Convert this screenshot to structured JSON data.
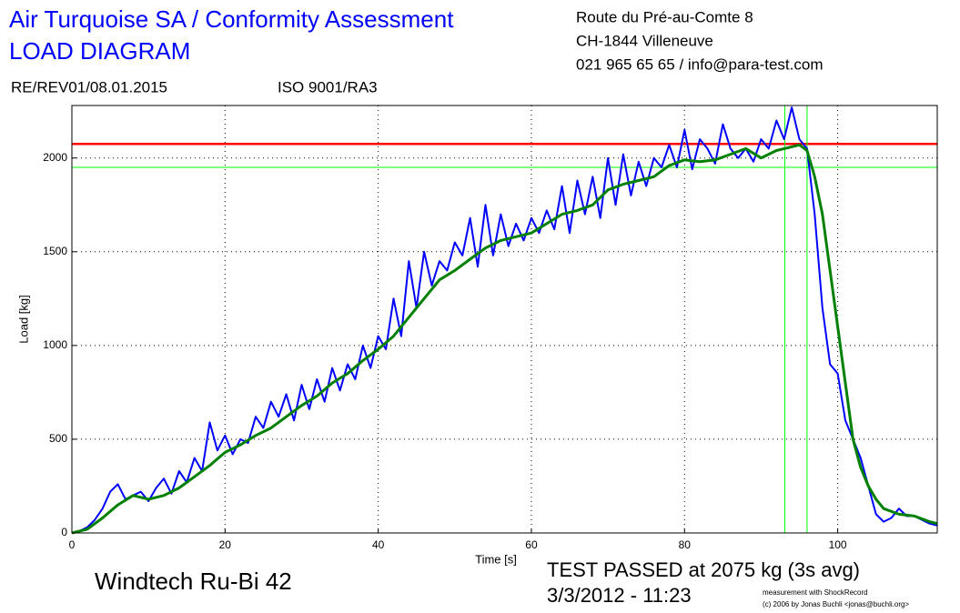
{
  "chart_data": {
    "type": "line",
    "title": "Air Turquoise SA / Conformity Assessment",
    "subtitle": "LOAD DIAGRAM",
    "revision": "RE/REV01/08.01.2015",
    "iso": "ISO 9001/RA3",
    "address": [
      "Route du Pré-au-Comte 8",
      "CH-1844 Villeneuve",
      "021 965 65 65 / info@para-test.com"
    ],
    "xlabel": "Time [s]",
    "ylabel": "Load [kg]",
    "wing": "Windtech Ru-Bi 42",
    "result": "TEST PASSED at 2075 kg (3s avg)",
    "date": "3/3/2012 - 11:23",
    "credit": [
      "measurement with ShockRecord",
      "(c) 2006 by Jonas Buchli <jonas@buchli.org>"
    ],
    "xlim": [
      0,
      113
    ],
    "ylim": [
      0,
      2280
    ],
    "xticks": [
      0,
      20,
      40,
      60,
      80,
      100
    ],
    "yticks": [
      0,
      500,
      1000,
      1500,
      2000
    ],
    "grid": true,
    "hlines": [
      {
        "value": 2075,
        "color": "#ff0000"
      },
      {
        "value": 1950,
        "color": "#00ff00"
      }
    ],
    "vlines": [
      {
        "value": 93.1,
        "color": "#00ff00"
      },
      {
        "value": 96,
        "color": "#00ff00"
      }
    ],
    "series": [
      {
        "color": "#0000ff",
        "x": [
          0,
          1,
          2,
          3,
          4,
          5,
          6,
          7,
          8,
          9,
          10,
          11,
          12,
          13,
          14,
          15,
          16,
          17,
          18,
          19,
          20,
          21,
          22,
          23,
          24,
          25,
          26,
          27,
          28,
          29,
          30,
          31,
          32,
          33,
          34,
          35,
          36,
          37,
          38,
          39,
          40,
          41,
          42,
          43,
          44,
          45,
          46,
          47,
          48,
          49,
          50,
          51,
          52,
          53,
          54,
          55,
          56,
          57,
          58,
          59,
          60,
          61,
          62,
          63,
          64,
          65,
          66,
          67,
          68,
          69,
          70,
          71,
          72,
          73,
          74,
          75,
          76,
          77,
          78,
          79,
          80,
          81,
          82,
          83,
          84,
          85,
          86,
          87,
          88,
          89,
          90,
          91,
          92,
          93,
          94,
          95,
          96,
          97,
          98,
          99,
          100,
          101,
          102,
          103,
          104,
          105,
          106,
          107,
          108,
          109,
          110,
          111,
          112,
          113
        ],
        "values": [
          0,
          10,
          30,
          70,
          130,
          220,
          260,
          180,
          200,
          220,
          170,
          240,
          290,
          210,
          330,
          270,
          400,
          330,
          590,
          440,
          520,
          420,
          500,
          480,
          620,
          560,
          700,
          620,
          740,
          600,
          790,
          660,
          820,
          700,
          880,
          760,
          900,
          820,
          1000,
          880,
          1050,
          980,
          1250,
          1050,
          1450,
          1200,
          1500,
          1320,
          1450,
          1400,
          1550,
          1480,
          1680,
          1420,
          1750,
          1480,
          1700,
          1530,
          1650,
          1560,
          1680,
          1600,
          1720,
          1620,
          1850,
          1600,
          1880,
          1700,
          1900,
          1680,
          2000,
          1750,
          2020,
          1800,
          1980,
          1850,
          2000,
          1950,
          2070,
          1950,
          2150,
          1940,
          2100,
          2050,
          1970,
          2180,
          2050,
          2000,
          2050,
          1980,
          2100,
          2050,
          2200,
          2100,
          2270,
          2100,
          2050,
          1700,
          1200,
          900,
          850,
          600,
          500,
          400,
          250,
          100,
          60,
          80,
          130,
          90,
          90,
          70,
          50,
          40
        ]
      },
      {
        "color": "#008000",
        "x": [
          0,
          2,
          4,
          6,
          8,
          10,
          12,
          14,
          16,
          18,
          20,
          22,
          24,
          26,
          28,
          30,
          32,
          34,
          36,
          38,
          40,
          42,
          44,
          46,
          48,
          50,
          52,
          54,
          56,
          58,
          60,
          62,
          64,
          66,
          68,
          70,
          72,
          74,
          76,
          78,
          80,
          82,
          84,
          86,
          88,
          90,
          92,
          94,
          95,
          96,
          97,
          98,
          99,
          100,
          101,
          102,
          103,
          104,
          105,
          106,
          108,
          110,
          112,
          113
        ],
        "values": [
          0,
          20,
          80,
          150,
          200,
          180,
          200,
          240,
          300,
          360,
          430,
          470,
          520,
          560,
          620,
          680,
          730,
          800,
          850,
          920,
          980,
          1050,
          1150,
          1250,
          1350,
          1400,
          1460,
          1520,
          1560,
          1580,
          1600,
          1650,
          1700,
          1720,
          1750,
          1830,
          1860,
          1880,
          1900,
          1960,
          1990,
          1980,
          1990,
          2020,
          2050,
          2000,
          2040,
          2060,
          2070,
          2040,
          1900,
          1700,
          1400,
          1100,
          800,
          500,
          350,
          250,
          180,
          130,
          100,
          90,
          60,
          50
        ]
      }
    ]
  }
}
